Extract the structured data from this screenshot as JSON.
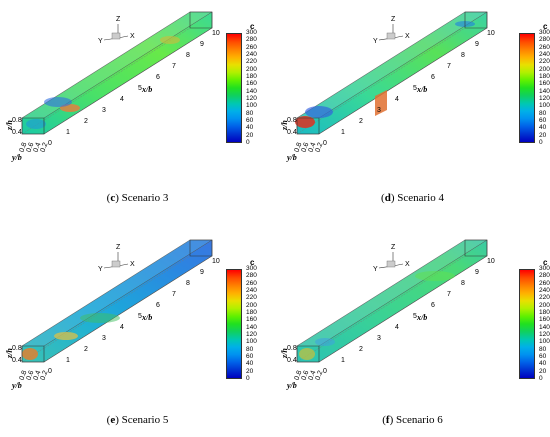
{
  "colorbar": {
    "title": "c",
    "ticks": [
      "300",
      "280",
      "260",
      "240",
      "220",
      "200",
      "180",
      "160",
      "140",
      "120",
      "100",
      "80",
      "60",
      "40",
      "20",
      "0"
    ],
    "colors": [
      "#ff0000",
      "#ff4a00",
      "#ff8000",
      "#ffb000",
      "#e8e000",
      "#b0f000",
      "#60f000",
      "#20e020",
      "#10d060",
      "#00c8b0",
      "#00b0e8",
      "#0090f0",
      "#0060e8",
      "#0030d0",
      "#0000c0"
    ]
  },
  "axes": {
    "x_label": "x/b",
    "y_label": "y/b",
    "z_label": "z/h",
    "x_ticks": [
      "0",
      "1",
      "2",
      "3",
      "4",
      "5",
      "6",
      "7",
      "8",
      "9",
      "10"
    ],
    "y_ticks": [
      "0.8",
      "0.6",
      "0.4",
      "0.2"
    ],
    "z_ticks": [
      "0.8",
      "0.4"
    ],
    "triad": {
      "z": "Z",
      "y": "Y",
      "x": "X"
    }
  },
  "panels": [
    {
      "id": "c",
      "label": "c",
      "caption": "Scenario 3"
    },
    {
      "id": "d",
      "label": "d",
      "caption": "Scenario 4"
    },
    {
      "id": "e",
      "label": "e",
      "caption": "Scenario 5"
    },
    {
      "id": "f",
      "label": "f",
      "caption": "Scenario 6"
    }
  ]
}
